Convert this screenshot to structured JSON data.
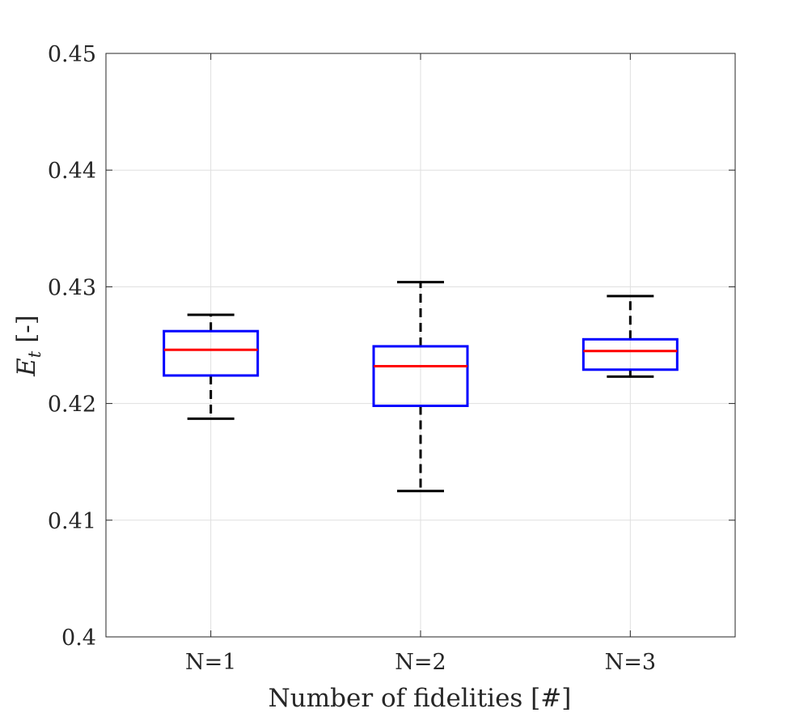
{
  "chart_data": {
    "type": "boxplot",
    "title": "",
    "xlabel": "Number of fidelities [#]",
    "ylabel_main": "E",
    "ylabel_sub": "t",
    "ylabel_unit": "[-]",
    "categories": [
      "N=1",
      "N=2",
      "N=3"
    ],
    "ylim": [
      0.4,
      0.45
    ],
    "yticks": [
      0.4,
      0.41,
      0.42,
      0.43,
      0.44,
      0.45
    ],
    "ytick_labels": [
      "0.4",
      "0.41",
      "0.42",
      "0.43",
      "0.44",
      "0.45"
    ],
    "grid": true,
    "boxes": [
      {
        "category": "N=1",
        "whisker_low": 0.4187,
        "q1": 0.4224,
        "median": 0.4246,
        "q3": 0.4262,
        "whisker_high": 0.4276
      },
      {
        "category": "N=2",
        "whisker_low": 0.4125,
        "q1": 0.4198,
        "median": 0.4232,
        "q3": 0.4249,
        "whisker_high": 0.4304
      },
      {
        "category": "N=3",
        "whisker_low": 0.4223,
        "q1": 0.4229,
        "median": 0.4245,
        "q3": 0.4255,
        "whisker_high": 0.4292
      }
    ],
    "colors": {
      "box": "#0000ff",
      "median": "#ff0000",
      "whisker": "#000000",
      "grid": "#dfdfdf",
      "axis": "#262626"
    }
  }
}
